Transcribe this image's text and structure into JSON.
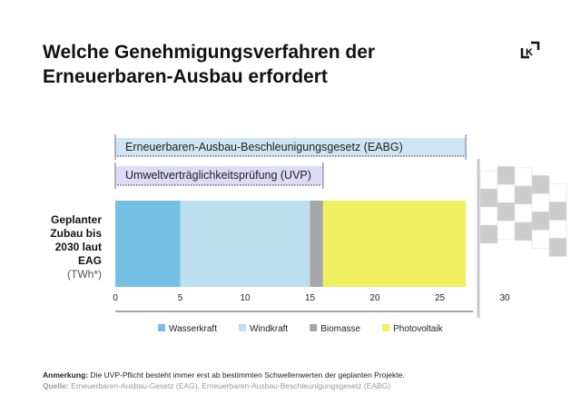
{
  "title": "Welche Genehmigungsverfahren der Erneuerbaren-Ausbau erfordert",
  "logo_text": "K",
  "chart_data": {
    "type": "bar",
    "orientation": "horizontal",
    "stacked": true,
    "category_label": "Geplanter Zubau bis 2030 laut EAG",
    "unit": "(TWh*)",
    "series": [
      {
        "name": "Wasserkraft",
        "value": 5,
        "color": "#74c0e3"
      },
      {
        "name": "Windkraft",
        "value": 10,
        "color": "#bcdff0"
      },
      {
        "name": "Biomasse",
        "value": 1,
        "color": "#a6a6a6"
      },
      {
        "name": "Photovoltaik",
        "value": 11,
        "color": "#eef060"
      }
    ],
    "xlim": [
      0,
      30
    ],
    "ticks": [
      0,
      5,
      10,
      15,
      20,
      25,
      30
    ],
    "ranges": [
      {
        "label": "Erneuerbaren-Ausbau-Beschleunigungsgesetz (EABG)",
        "from": 0,
        "to": 27
      },
      {
        "label": "Umweltverträglichkeitsprüfung (UVP)",
        "from": 0,
        "to": 16
      }
    ],
    "annotation": "Zielflagge bei 27 TWh"
  },
  "footnote": {
    "label": "Anmerkung:",
    "text": " Die UVP-Pflicht besteht immer erst ab bestimmten Schwellenwerten der geplanten Projekte."
  },
  "source": {
    "label": "Quelle:",
    "text": " Erneuerbaren-Ausbau-Gesetz (EAG), Erneuerbaren-Ausbau-Beschleunigungsgesetz (EABG)"
  }
}
